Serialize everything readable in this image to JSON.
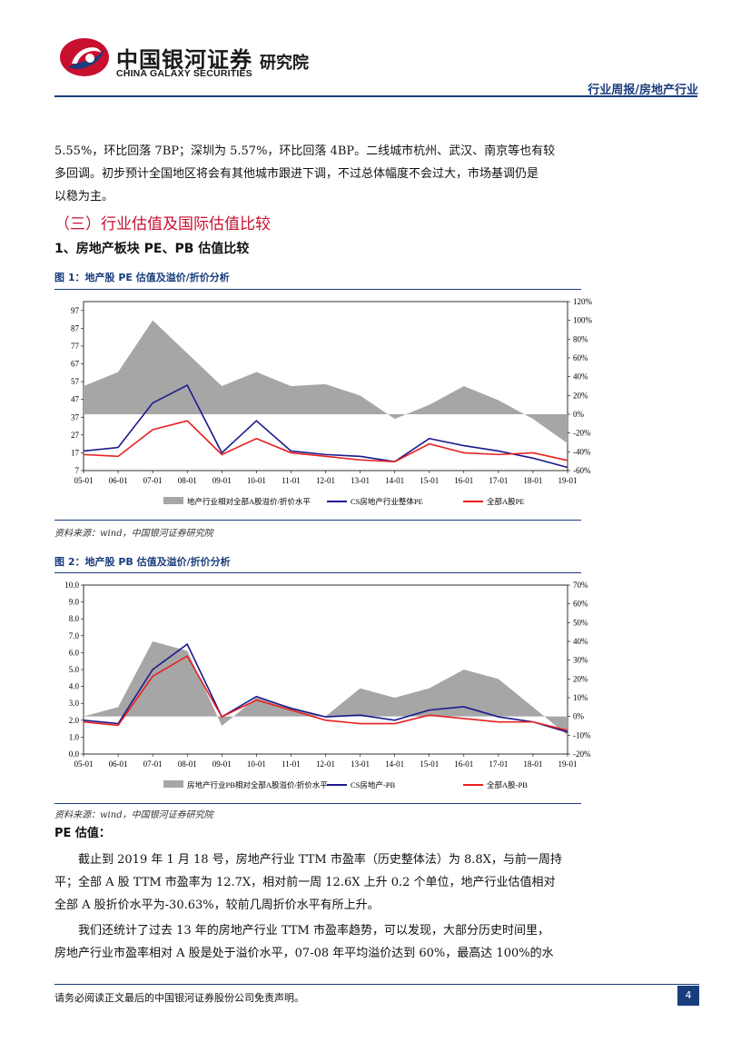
{
  "header": {
    "brand_cn": "中国银河证券",
    "brand_en": "CHINA GALAXY SECURITIES",
    "institute": "研究院",
    "report_type": "行业周报/房地产行业",
    "logo_colors": [
      "#c8102e",
      "#1a3d7c"
    ]
  },
  "intro_paragraph": [
    "5.55%，环比回落 7BP；深圳为 5.57%，环比回落 4BP。二线城市杭州、武汉、南京等也有较",
    "多回调。初步预计全国地区将会有其他城市跟进下调，不过总体幅度不会过大，市场基调仍是",
    "以稳为主。"
  ],
  "section_title": "（三）行业估值及国际估值比较",
  "subsection_title": "1、房地产板块 PE、PB 估值比较",
  "figures": [
    {
      "title": "图 1：地产股 PE 估值及溢价/折价分析",
      "source": "资料来源：wind，中国银河证券研究院"
    },
    {
      "title": "图 2：地产股 PB 估值及溢价/折价分析",
      "source": "资料来源：wind，中国银河证券研究院"
    }
  ],
  "chart_data": [
    {
      "type": "line",
      "x": [
        "05-01",
        "06-01",
        "07-01",
        "08-01",
        "09-01",
        "10-01",
        "11-01",
        "12-01",
        "13-01",
        "14-01",
        "15-01",
        "16-01",
        "17-01",
        "18-01",
        "19-01"
      ],
      "xlim": [
        "05-01",
        "19-01"
      ],
      "y_left_ticks": [
        7,
        17,
        27,
        37,
        47,
        57,
        67,
        77,
        87,
        97
      ],
      "ylim_left": [
        7,
        102
      ],
      "y_right_ticks": [
        "120%",
        "100%",
        "80%",
        "60%",
        "40%",
        "20%",
        "0%",
        "-20%",
        "-40%",
        "-60%"
      ],
      "ylim_right": [
        -0.6,
        1.2
      ],
      "series": [
        {
          "name": "地产行业相对全部A股溢价/折价水平",
          "kind": "area",
          "axis": "right",
          "color": "#a6a6a6",
          "values": [
            0.3,
            0.45,
            1.0,
            0.65,
            0.3,
            0.45,
            0.3,
            0.32,
            0.2,
            -0.05,
            0.1,
            0.3,
            0.15,
            -0.05,
            -0.31
          ]
        },
        {
          "name": "CS房地产行业整体PE",
          "kind": "line",
          "axis": "left",
          "color": "#1a1a8c",
          "values": [
            18,
            20,
            45,
            55,
            17,
            35,
            18,
            16,
            15,
            12,
            25,
            21,
            18,
            14,
            8.8
          ]
        },
        {
          "name": "全部A股PE",
          "kind": "line",
          "axis": "left",
          "color": "#e8201f",
          "values": [
            16,
            15,
            30,
            35,
            16,
            25,
            17,
            15,
            13,
            12,
            22,
            17,
            16,
            17,
            12.7
          ]
        }
      ],
      "legend_position": "bottom"
    },
    {
      "type": "line",
      "x": [
        "05-01",
        "06-01",
        "07-01",
        "08-01",
        "09-01",
        "10-01",
        "11-01",
        "12-01",
        "13-01",
        "14-01",
        "15-01",
        "16-01",
        "17-01",
        "18-01",
        "19-01"
      ],
      "xlim": [
        "05-01",
        "19-01"
      ],
      "y_left_ticks": [
        "0.0",
        "1.0",
        "2.0",
        "3.0",
        "4.0",
        "5.0",
        "6.0",
        "7.0",
        "8.0",
        "9.0",
        "10.0"
      ],
      "ylim_left": [
        0,
        10
      ],
      "y_right_ticks": [
        "70%",
        "60%",
        "50%",
        "40%",
        "30%",
        "20%",
        "10%",
        "0%",
        "-10%",
        "-20%"
      ],
      "ylim_right": [
        -0.2,
        0.7
      ],
      "series": [
        {
          "name": "房地产行业PB相对全部A股溢价/折价水平",
          "kind": "area",
          "axis": "right",
          "color": "#a6a6a6",
          "values": [
            0.0,
            0.05,
            0.4,
            0.35,
            -0.05,
            0.1,
            0.05,
            0.0,
            0.15,
            0.1,
            0.15,
            0.25,
            0.2,
            0.05,
            -0.1
          ]
        },
        {
          "name": "CS房地产-PB",
          "kind": "line",
          "axis": "left",
          "color": "#1a1a8c",
          "values": [
            2.0,
            1.8,
            5.0,
            6.5,
            2.2,
            3.4,
            2.7,
            2.2,
            2.3,
            2.0,
            2.6,
            2.8,
            2.2,
            1.9,
            1.3
          ]
        },
        {
          "name": "全部A股-PB",
          "kind": "line",
          "axis": "left",
          "color": "#e8201f",
          "values": [
            1.9,
            1.7,
            4.6,
            5.8,
            2.2,
            3.2,
            2.6,
            2.0,
            1.8,
            1.8,
            2.3,
            2.1,
            1.9,
            1.9,
            1.4
          ]
        }
      ],
      "legend_position": "bottom"
    }
  ],
  "pe_heading": "PE 估值：",
  "pe_paragraph_1": [
    "截止到 2019 年 1 月 18 号，房地产行业 TTM 市盈率（历史整体法）为 8.8X，与前一周持",
    "平；全部 A 股 TTM 市盈率为 12.7X，相对前一周 12.6X 上升 0.2 个单位，地产行业估值相对",
    "全部 A 股折价水平为-30.63%，较前几周折价水平有所上升。"
  ],
  "pe_paragraph_2": [
    "我们还统计了过去 13 年的房地产行业 TTM 市盈率趋势，可以发现，大部分历史时间里，",
    "房地产行业市盈率相对 A 股是处于溢价水平，07-08 年平均溢价达到 60%，最高达 100%的水"
  ],
  "footer": {
    "disclaimer": "请务必阅读正文最后的中国银河证券股份公司免责声明。",
    "page": "4"
  }
}
